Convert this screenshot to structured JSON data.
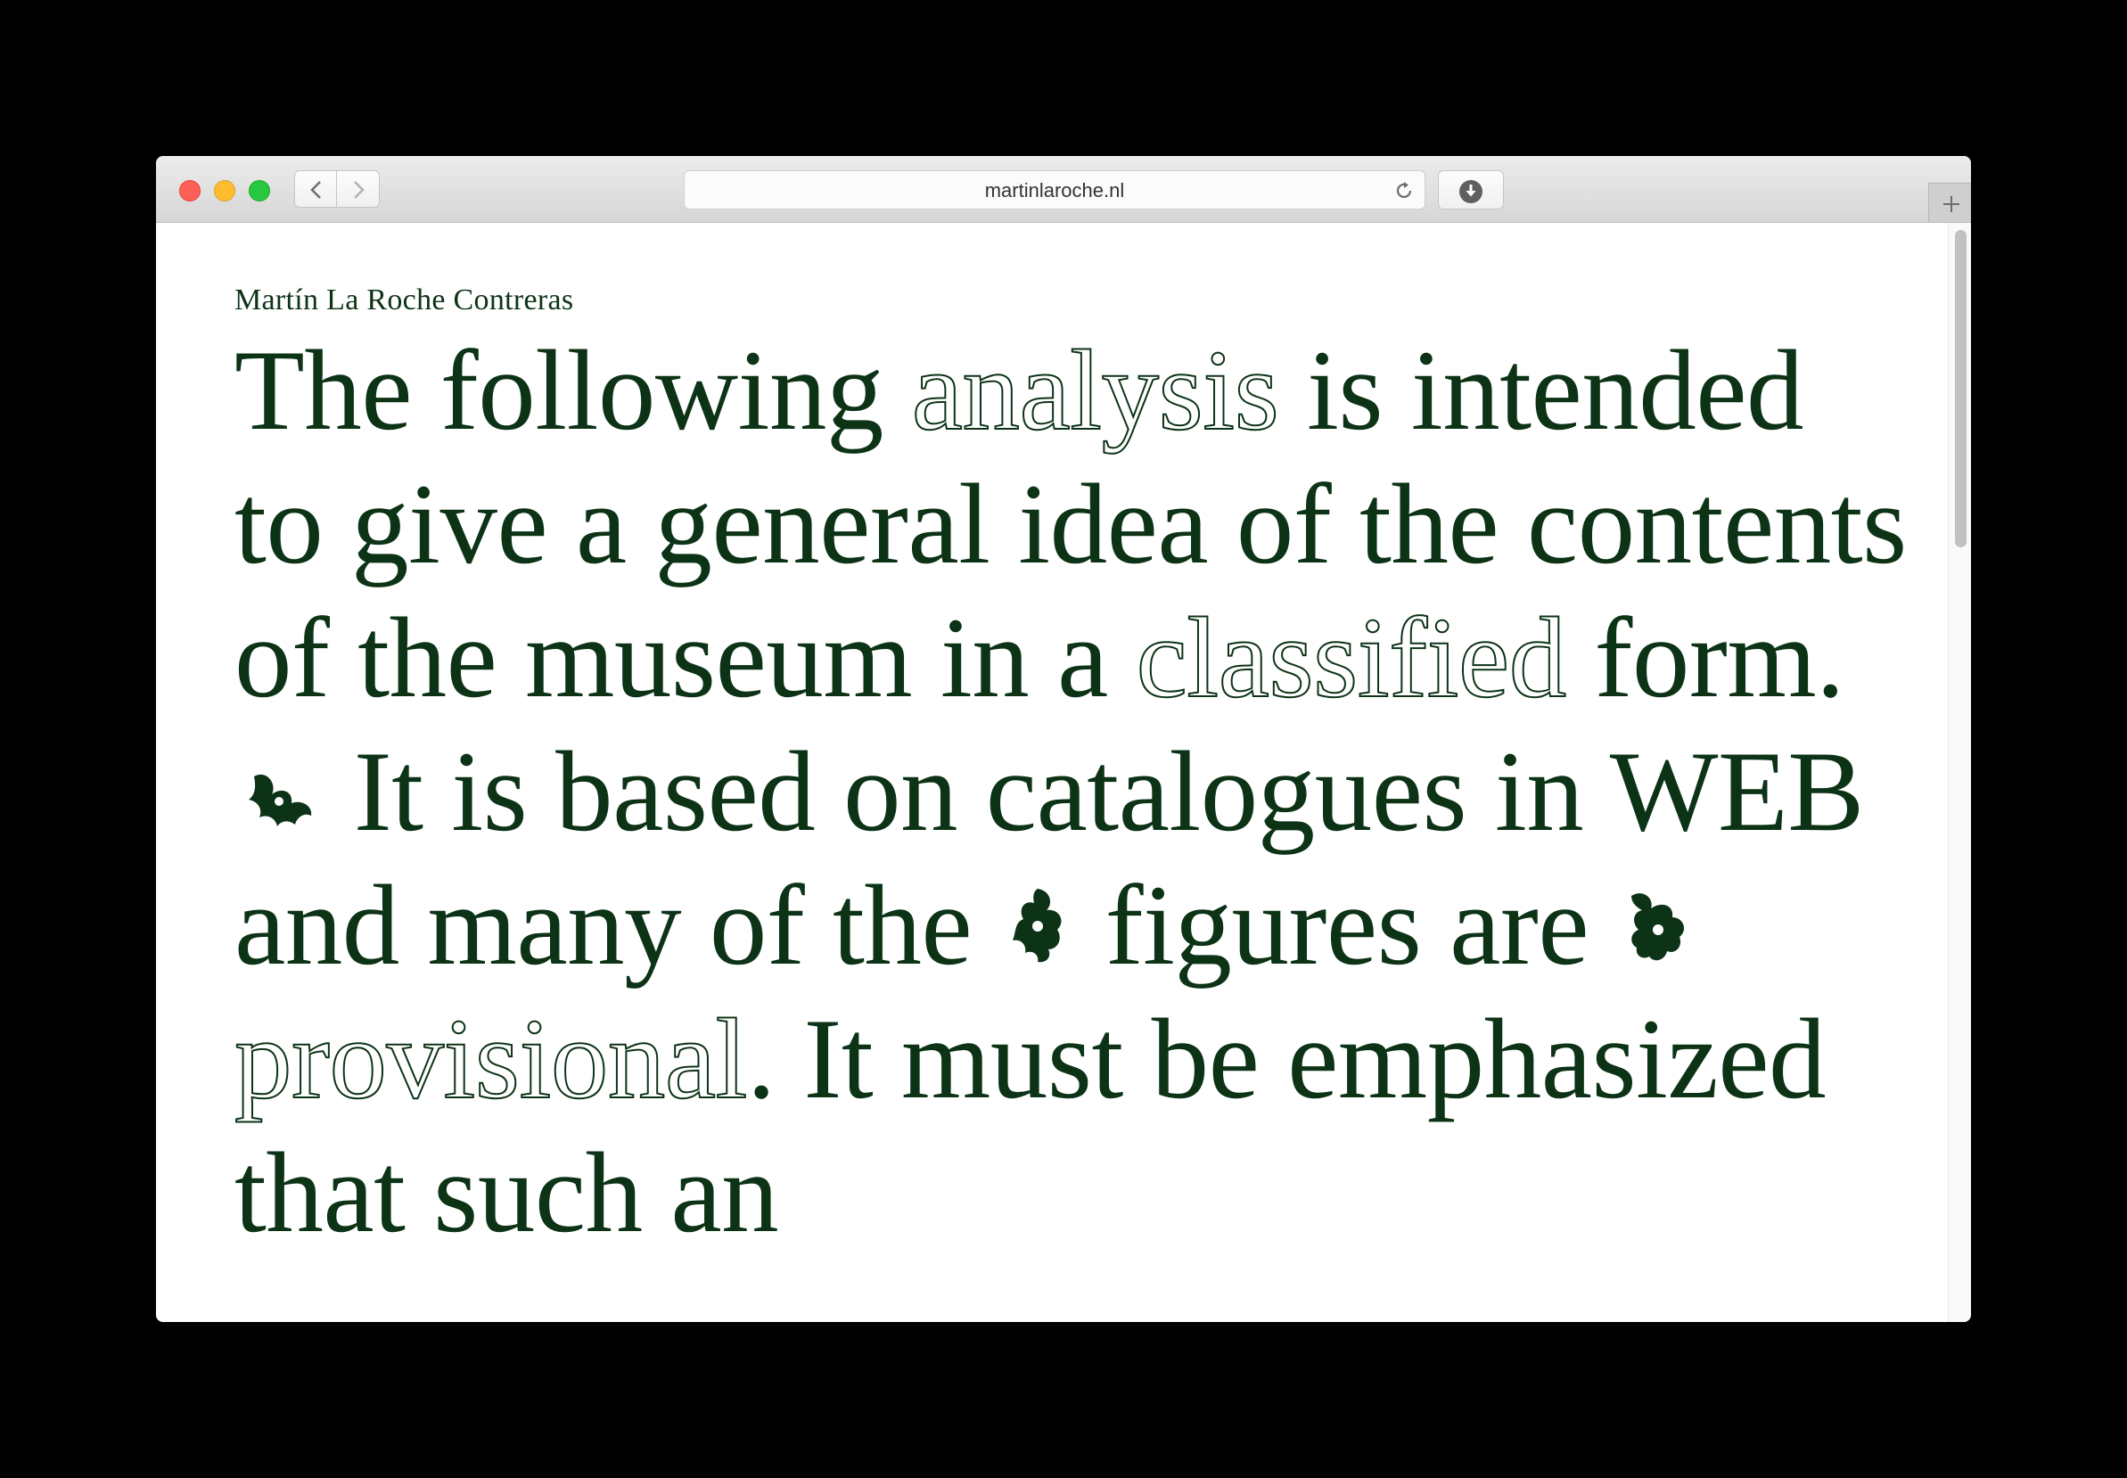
{
  "browser": {
    "url": "martinlaroche.nl"
  },
  "page": {
    "author": "Martín La Roche Contreras",
    "segments": [
      "The following ",
      "analysis",
      " is intended to give a general idea of the contents of the museum in a ",
      "classified",
      " form. ",
      " It is based on catalogues in WEB and many of the ",
      " figures are ",
      " ",
      "provisional",
      ". It must be emphasized that such an"
    ]
  },
  "icons": [
    "leaf-ornament-icon",
    "leaf-ornament-icon",
    "leaf-ornament-icon"
  ],
  "colors": {
    "text": "#0d3316",
    "background": "#ffffff",
    "chrome": "#e0e0e0"
  }
}
